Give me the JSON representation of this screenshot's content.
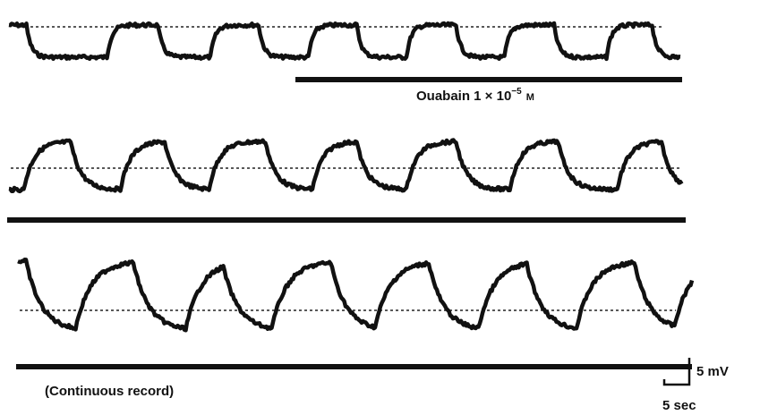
{
  "annotations": {
    "ouabain": {
      "text": "Ouabain 1 × 10",
      "exponent": "−5",
      "unit": "M"
    },
    "continuous_record": "(Continuous record)",
    "scale_bar": {
      "voltage": "5 mV",
      "time": "5 sec"
    }
  }
}
